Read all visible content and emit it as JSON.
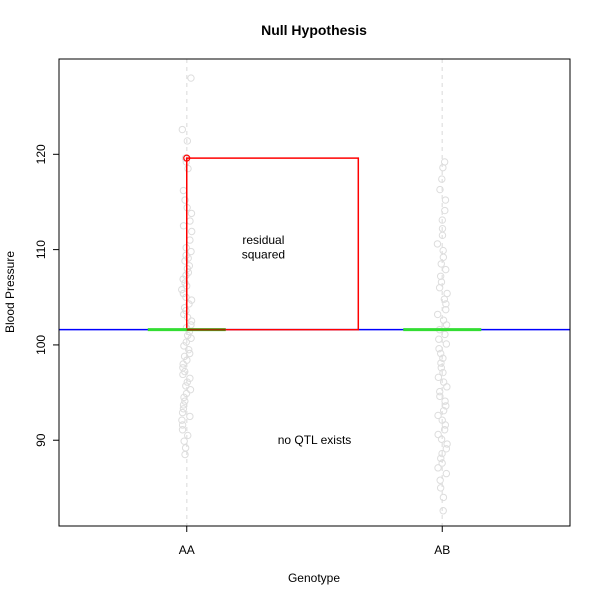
{
  "chart_data": {
    "type": "scatter",
    "title": "Null Hypothesis",
    "xlabel": "Genotype",
    "ylabel": "Blood Pressure",
    "categories": [
      "AA",
      "AB"
    ],
    "ylim": [
      81,
      130
    ],
    "yticks": [
      90,
      100,
      110,
      120
    ],
    "null_mean": 101.6,
    "group_means": [
      101.6,
      101.6
    ],
    "highlight_point": {
      "category": "AA",
      "y": 119.6
    },
    "residual_square": {
      "y_low": 101.6,
      "y_high": 119.6
    },
    "series": [
      {
        "category": "AA",
        "values": [
          128,
          122.6,
          121.4,
          119.6,
          119.2,
          118.5,
          116.2,
          115.2,
          114.4,
          113.8,
          113.0,
          112.5,
          111.9,
          111.0,
          110.2,
          109.8,
          109.4,
          109.1,
          108.8,
          108.3,
          108.0,
          107.6,
          107.3,
          106.9,
          106.5,
          106.2,
          105.8,
          105.4,
          105.0,
          104.7,
          104.3,
          103.9,
          103.6,
          103.2,
          102.9,
          102.5,
          102.1,
          101.8,
          101.4,
          101.0,
          100.7,
          100.3,
          99.9,
          99.5,
          99.1,
          98.8,
          98.4,
          98.0,
          97.6,
          97.2,
          96.9,
          96.5,
          96.1,
          95.7,
          95.3,
          94.9,
          94.5,
          94.1,
          93.7,
          93.3,
          92.9,
          92.5,
          92.1,
          91.6,
          91.1,
          90.5,
          89.9,
          89.2,
          88.5
        ],
        "color": "#dddddd"
      },
      {
        "category": "AB",
        "values": [
          119.2,
          118.6,
          117.4,
          116.3,
          115.2,
          114.1,
          113.1,
          112.2,
          111.5,
          110.6,
          109.9,
          109.2,
          108.5,
          107.9,
          107.2,
          106.6,
          106.0,
          105.4,
          104.8,
          104.3,
          103.7,
          103.2,
          102.6,
          102.1,
          101.6,
          101.1,
          100.6,
          100.1,
          99.6,
          99.1,
          98.6,
          98.1,
          97.6,
          97.1,
          96.6,
          96.1,
          95.6,
          95.1,
          94.6,
          94.1,
          93.6,
          93.1,
          92.6,
          92.1,
          91.6,
          91.1,
          90.6,
          90.1,
          89.6,
          89.1,
          88.6,
          88.1,
          87.6,
          87.1,
          86.5,
          85.8,
          85.0,
          84.0,
          82.6
        ],
        "color": "#dddddd"
      }
    ],
    "annotations": [
      {
        "text": "residual",
        "x_pos": 1.3,
        "y": 111.0
      },
      {
        "text": "squared",
        "x_pos": 1.3,
        "y": 109.5
      },
      {
        "text": "no QTL exists",
        "x_pos": 1.5,
        "y": 90.0
      }
    ],
    "colors": {
      "null_line": "#0000ff",
      "mean_segments": "#33dd33",
      "residual": "#ff0000",
      "points": "#dddddd",
      "grid": "#e6e6e6"
    }
  }
}
